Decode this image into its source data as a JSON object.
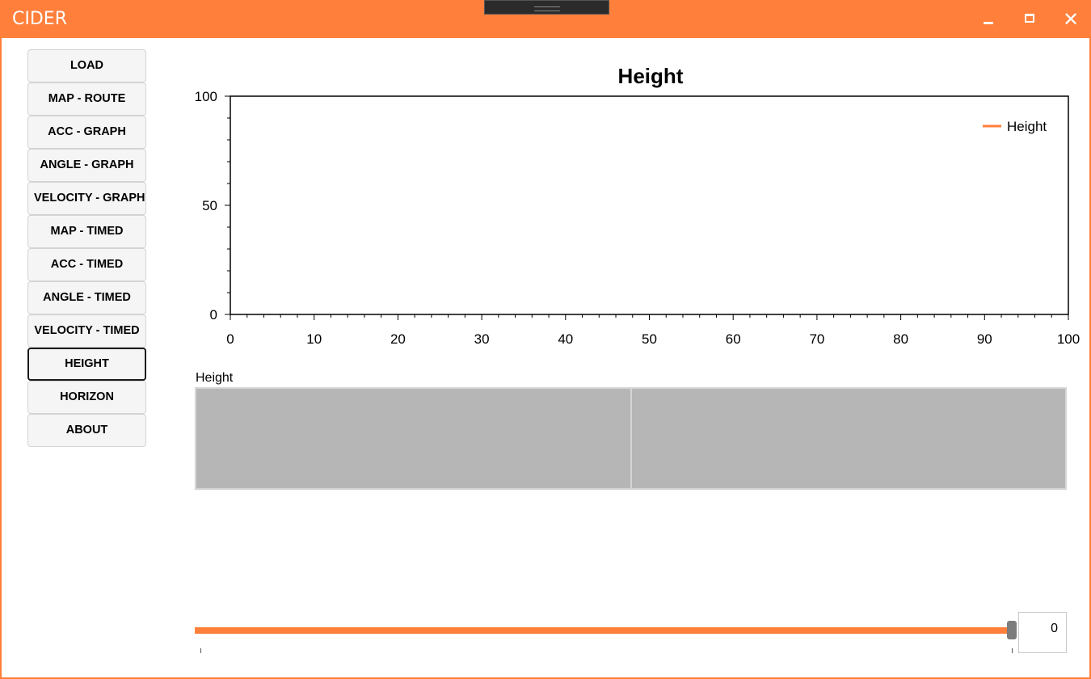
{
  "window": {
    "title": "CIDER",
    "accent_color": "#ff7f3b",
    "controls": {
      "minimize_icon": "minimize-icon",
      "maximize_icon": "maximize-icon",
      "close_icon": "close-icon",
      "close_glyph": "✕"
    }
  },
  "sidebar": {
    "items": [
      {
        "label": "LOAD"
      },
      {
        "label": "MAP - ROUTE"
      },
      {
        "label": "ACC - GRAPH"
      },
      {
        "label": "ANGLE - GRAPH"
      },
      {
        "label": "VELOCITY - GRAPH"
      },
      {
        "label": "MAP - TIMED"
      },
      {
        "label": "ACC - TIMED"
      },
      {
        "label": "ANGLE - TIMED"
      },
      {
        "label": "VELOCITY - TIMED"
      },
      {
        "label": "HEIGHT",
        "active": true
      },
      {
        "label": "HORIZON"
      },
      {
        "label": "ABOUT"
      }
    ]
  },
  "chart_data": {
    "type": "line",
    "title": "Height",
    "xlabel": "",
    "ylabel": "",
    "xlim": [
      0,
      100
    ],
    "ylim": [
      0,
      100
    ],
    "x_ticks": [
      "0",
      "10",
      "20",
      "30",
      "40",
      "50",
      "60",
      "70",
      "80",
      "90",
      "100"
    ],
    "y_ticks": [
      "0",
      "50",
      "100"
    ],
    "series": [
      {
        "name": "Height",
        "color": "#ff7f3b",
        "x": [],
        "y": []
      }
    ],
    "legend_position": "top-right",
    "grid": false
  },
  "strip": {
    "label": "Height",
    "fill_color": "#b6b6b6"
  },
  "slider": {
    "value": "0",
    "fraction": 1.0,
    "track_color": "#ff7f3b"
  }
}
